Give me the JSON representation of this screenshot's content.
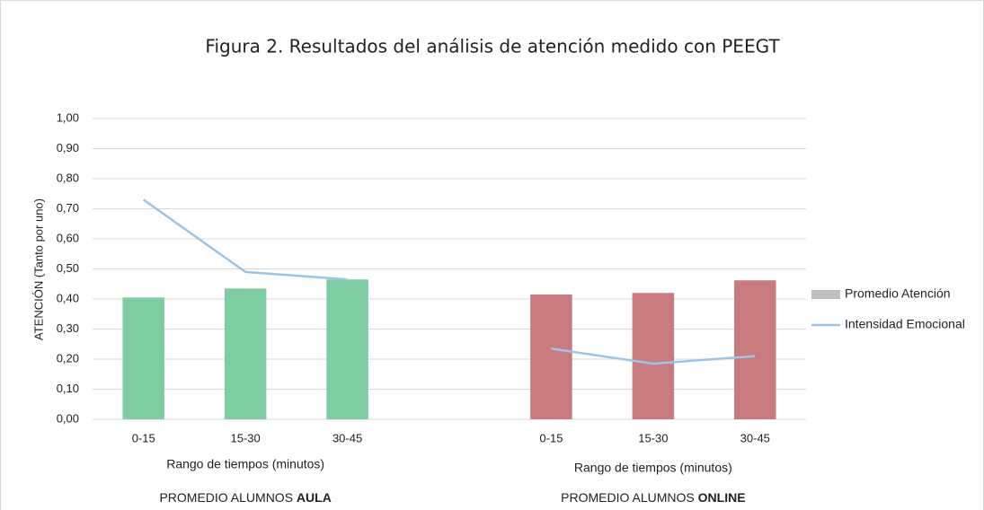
{
  "chart_data": {
    "type": "bar",
    "title": "Figura 2. Resultados del análisis de atención medido con PEEGT",
    "y_label": "ATENCIÓN (Tanto por uno)",
    "categories": [
      "0-15",
      "15-30",
      "30-45",
      null,
      "0-15",
      "15-30",
      "30-45"
    ],
    "groups": [
      {
        "axis_label": "Rango de tiempos (minutos)",
        "label": "PROMEDIO ALUMNOS ",
        "label_bold": "AULA"
      },
      {
        "axis_label": "Rango de tiempos (minutos)",
        "label": "PROMEDIO ALUMNOS ",
        "label_bold": "ONLINE"
      }
    ],
    "series": [
      {
        "name": "Promedio Atención",
        "kind": "bar",
        "color": "#bfbfbf",
        "point_colors": [
          "#7fcca3",
          "#7fcca3",
          "#7fcca3",
          null,
          "#c77b7e",
          "#c77b7e",
          "#c77b7e"
        ],
        "values": [
          0.405,
          0.435,
          0.465,
          null,
          0.415,
          0.42,
          0.462
        ]
      },
      {
        "name": "Intensidad Emocional",
        "kind": "line",
        "color": "#9dc3e6",
        "values": [
          0.73,
          0.49,
          0.465,
          null,
          0.235,
          0.185,
          0.21
        ]
      }
    ],
    "ylim": [
      0,
      1
    ],
    "yticks": [
      {
        "value": 0,
        "label": "0,00"
      },
      {
        "value": 0.1,
        "label": "0,10"
      },
      {
        "value": 0.2,
        "label": "0,20"
      },
      {
        "value": 0.3,
        "label": "0,30"
      },
      {
        "value": 0.4,
        "label": "0,40"
      },
      {
        "value": 0.5,
        "label": "0,50"
      },
      {
        "value": 0.6,
        "label": "0,60"
      },
      {
        "value": 0.7,
        "label": "0,70"
      },
      {
        "value": 0.8,
        "label": "0,80"
      },
      {
        "value": 0.9,
        "label": "0,90"
      },
      {
        "value": 1,
        "label": "1,00"
      }
    ],
    "grid": true,
    "legend": "right"
  }
}
